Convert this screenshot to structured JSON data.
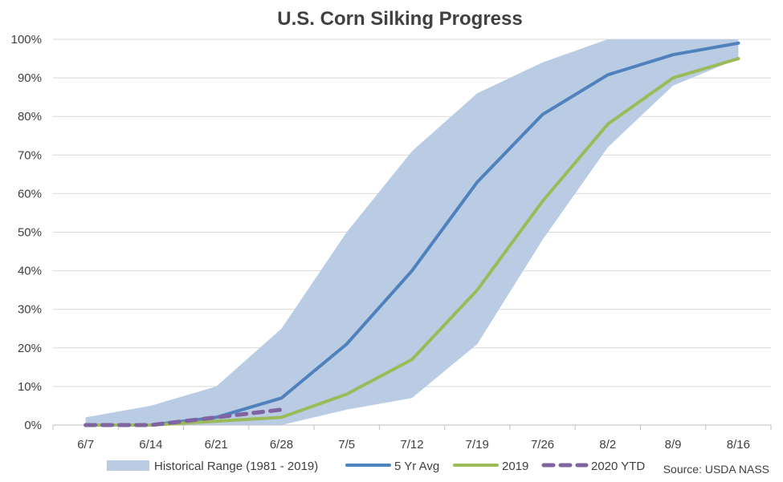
{
  "chart_data": {
    "type": "line",
    "title": "U.S. Corn Silking Progress",
    "categories": [
      "6/7",
      "6/14",
      "6/21",
      "6/28",
      "7/5",
      "7/12",
      "7/19",
      "7/26",
      "8/2",
      "8/9",
      "8/16"
    ],
    "y_tick_labels": [
      "0%",
      "10%",
      "20%",
      "30%",
      "40%",
      "50%",
      "60%",
      "70%",
      "80%",
      "90%",
      "100%"
    ],
    "ylim": [
      0,
      100
    ],
    "grid": "horizontal",
    "legend_position": "bottom",
    "range_series": {
      "name": "Historical Range (1981 - 2019)",
      "color": "#b9cce4",
      "low": [
        0,
        0,
        0,
        0,
        4,
        7,
        21,
        48,
        72,
        88,
        95
      ],
      "high": [
        2,
        5,
        10,
        25,
        50,
        71,
        86,
        94,
        100,
        100,
        100
      ]
    },
    "series": [
      {
        "name": "5 Yr Avg",
        "color": "#4f81bd",
        "dash": false,
        "values": [
          0,
          0,
          2,
          7,
          21,
          40,
          63,
          80.5,
          90.8,
          96,
          99
        ]
      },
      {
        "name": "2019",
        "color": "#9bbb59",
        "dash": false,
        "values": [
          0,
          0,
          1,
          2,
          8,
          17,
          35,
          58,
          78,
          90,
          95
        ]
      },
      {
        "name": "2020 YTD",
        "color": "#8064a2",
        "dash": true,
        "values": [
          0,
          0,
          2,
          4,
          null,
          null,
          null,
          null,
          null,
          null,
          null
        ]
      }
    ],
    "source": "Source: USDA NASS"
  }
}
